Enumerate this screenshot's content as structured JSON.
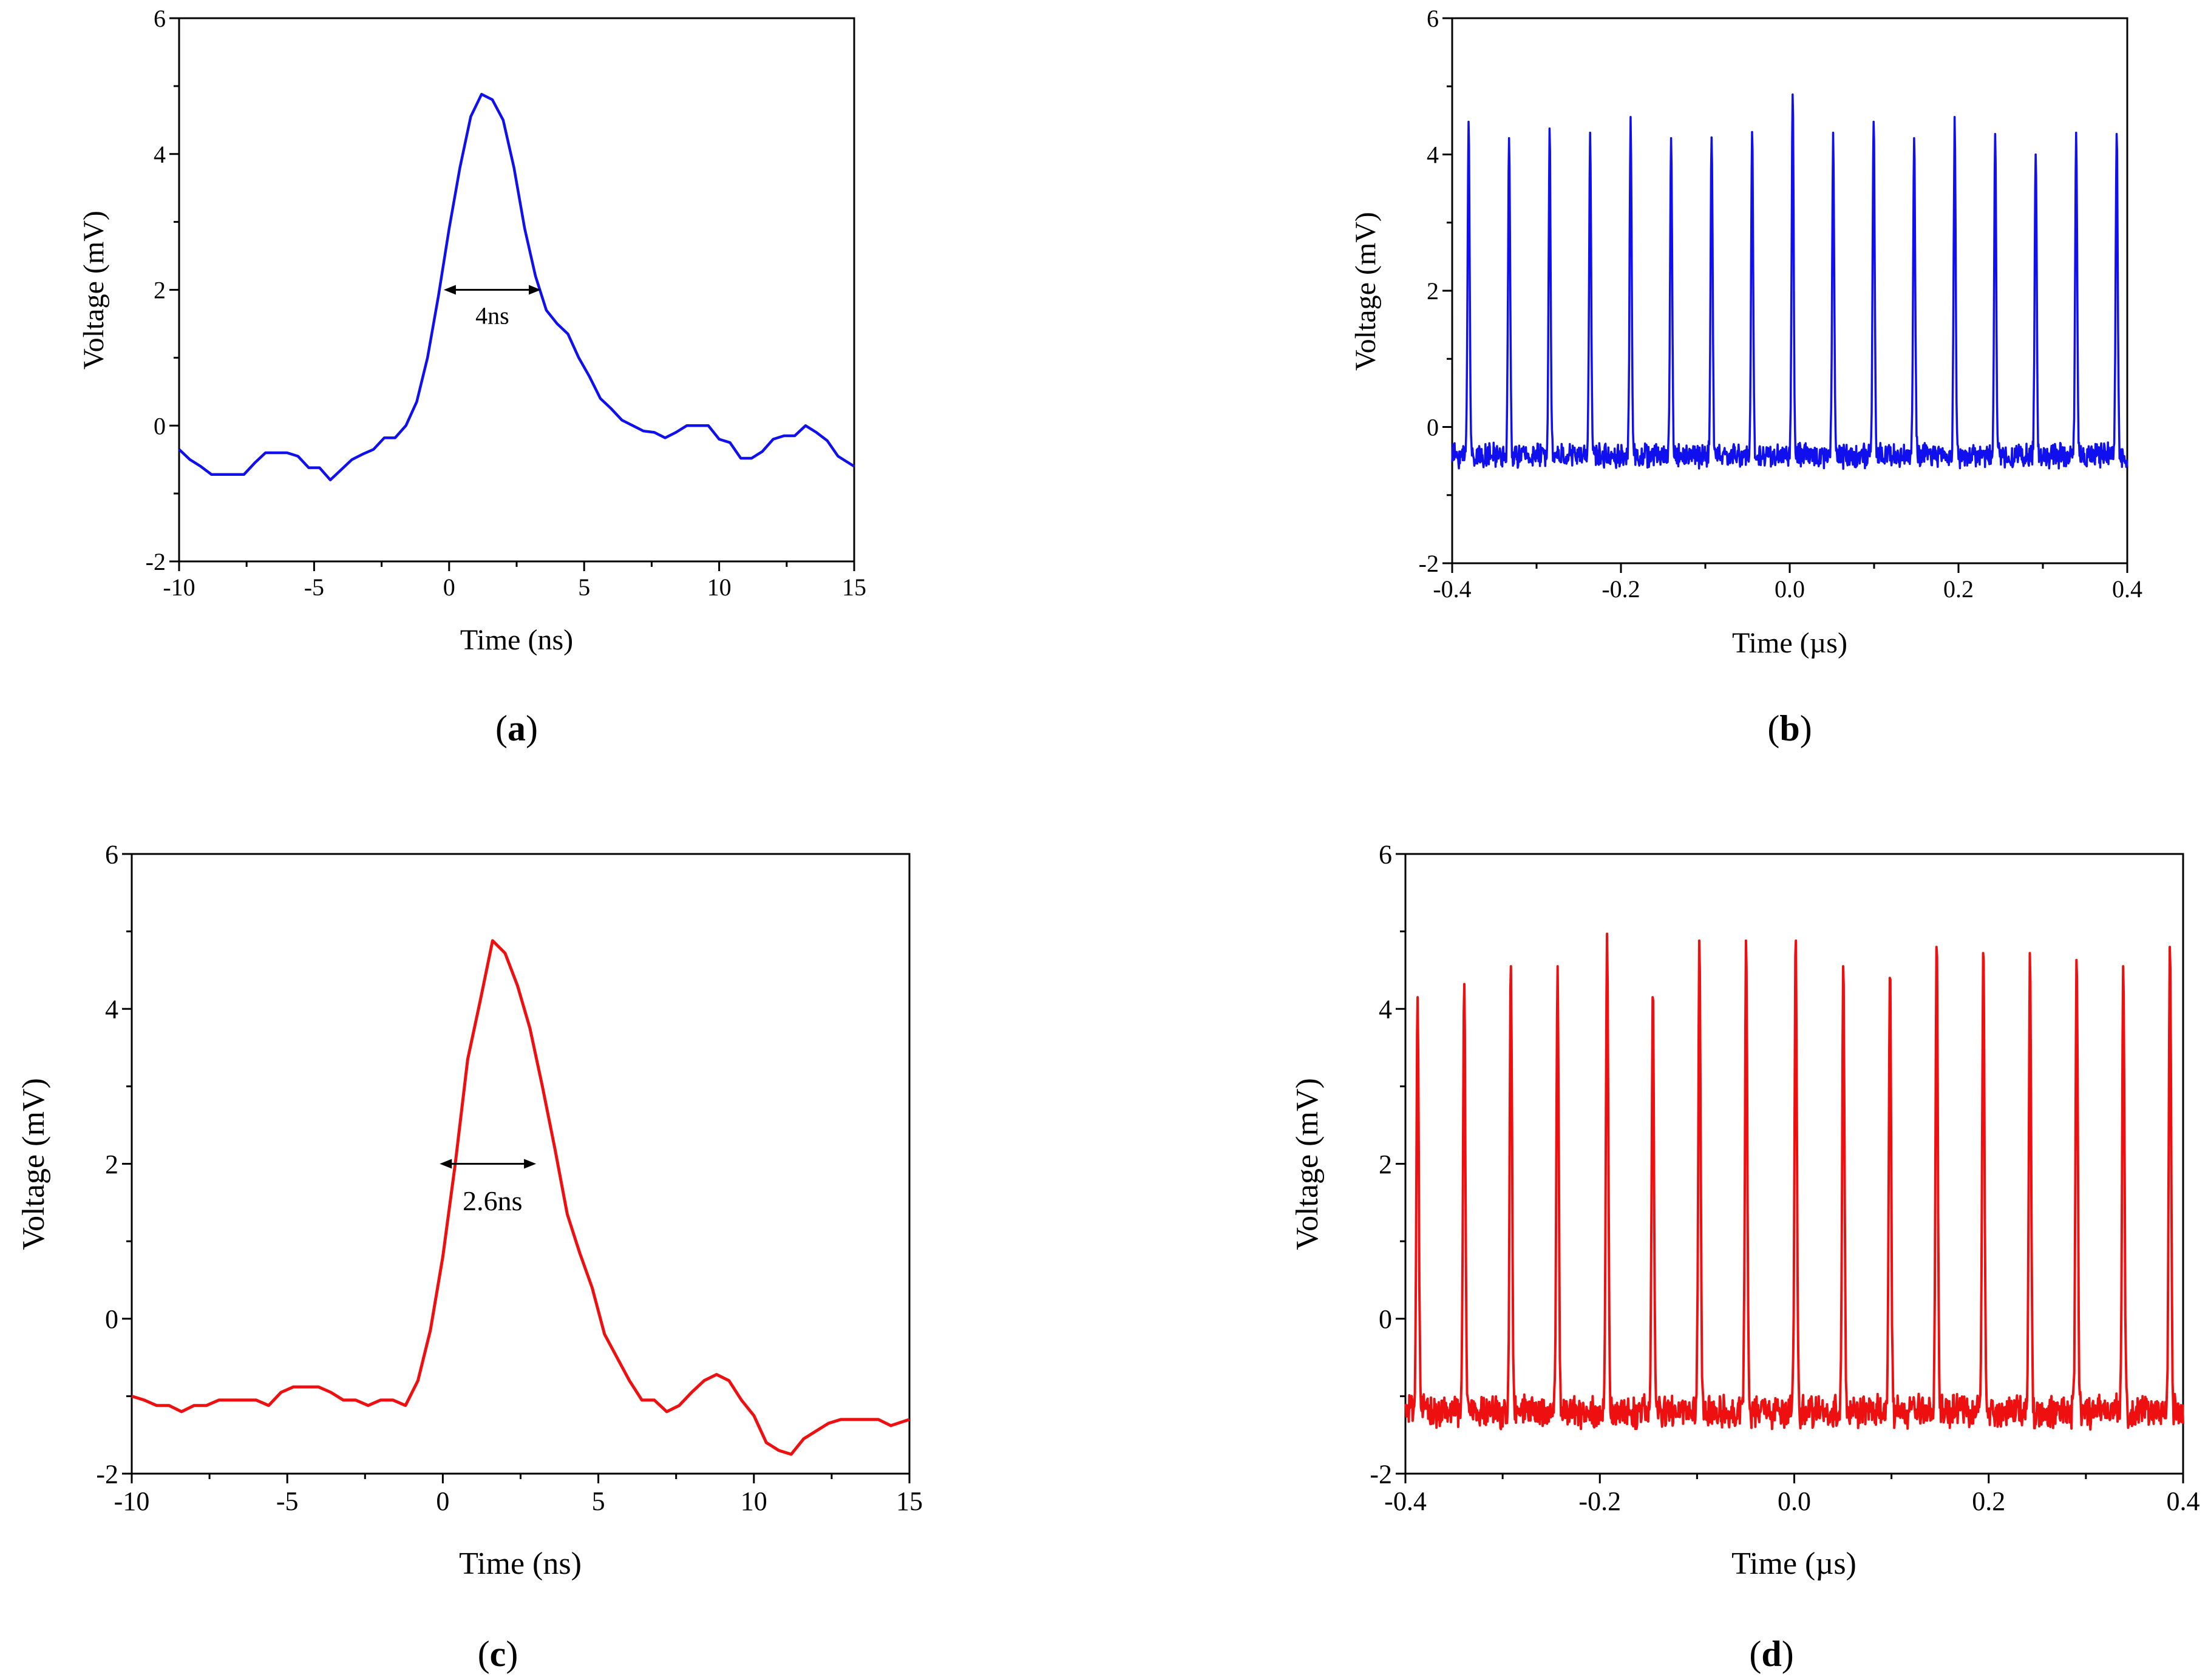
{
  "colors": {
    "blue": "#1010ee",
    "red": "#ee1010"
  },
  "chart_data": [
    {
      "type": "line",
      "panel": "(a)",
      "caption_letter": "a",
      "xlabel": "Time (ns)",
      "ylabel": "Voltage (mV)",
      "xlim": [
        -10,
        15
      ],
      "ylim": [
        -2,
        6
      ],
      "xticks": [
        -10,
        -5,
        0,
        5,
        10,
        15
      ],
      "yticks": [
        -2,
        0,
        2,
        4,
        6
      ],
      "xtick_labels": [
        "-10",
        "-5",
        "0",
        "5",
        "10",
        "15"
      ],
      "ytick_labels": [
        "-2",
        "0",
        "2",
        "4",
        "6"
      ],
      "grid": false,
      "color": "blue",
      "annotation": {
        "text": "4ns",
        "x1": -0.2,
        "x2": 3.4,
        "y": 2.0,
        "label_x": 1.6,
        "label_y": 1.5
      },
      "series": [
        {
          "name": "pulse",
          "x": [
            -10,
            -9.6,
            -9.2,
            -8.8,
            -8.4,
            -8,
            -7.6,
            -7.2,
            -6.8,
            -6.4,
            -6.0,
            -5.6,
            -5.2,
            -4.8,
            -4.4,
            -4.0,
            -3.6,
            -3.2,
            -2.8,
            -2.4,
            -2.0,
            -1.6,
            -1.2,
            -0.8,
            -0.4,
            0.0,
            0.4,
            0.8,
            1.2,
            1.6,
            2.0,
            2.4,
            2.8,
            3.2,
            3.6,
            4.0,
            4.4,
            4.8,
            5.2,
            5.6,
            6.0,
            6.4,
            6.8,
            7.2,
            7.6,
            8.0,
            8.4,
            8.8,
            9.2,
            9.6,
            10.0,
            10.4,
            10.8,
            11.2,
            11.6,
            12.0,
            12.4,
            12.8,
            13.2,
            13.6,
            14.0,
            14.4,
            15.0
          ],
          "values": [
            -0.35,
            -0.5,
            -0.6,
            -0.72,
            -0.72,
            -0.72,
            -0.72,
            -0.55,
            -0.4,
            -0.4,
            -0.4,
            -0.45,
            -0.62,
            -0.62,
            -0.8,
            -0.65,
            -0.5,
            -0.42,
            -0.35,
            -0.18,
            -0.18,
            0.0,
            0.35,
            1.0,
            1.9,
            2.9,
            3.8,
            4.55,
            4.88,
            4.8,
            4.5,
            3.8,
            2.9,
            2.2,
            1.7,
            1.5,
            1.35,
            1.0,
            0.72,
            0.4,
            0.25,
            0.08,
            0.0,
            -0.08,
            -0.1,
            -0.18,
            -0.1,
            0.0,
            0.0,
            0.0,
            -0.2,
            -0.25,
            -0.48,
            -0.48,
            -0.38,
            -0.2,
            -0.15,
            -0.15,
            0.0,
            -0.1,
            -0.22,
            -0.45,
            -0.6
          ]
        }
      ]
    },
    {
      "type": "line",
      "panel": "(b)",
      "caption_letter": "b",
      "xlabel": "Time (µs)",
      "ylabel": "Voltage (mV)",
      "xlim": [
        -0.4,
        0.4
      ],
      "ylim": [
        -2,
        6
      ],
      "xticks": [
        -0.4,
        -0.2,
        0.0,
        0.2,
        0.4
      ],
      "yticks": [
        -2,
        0,
        2,
        4,
        6
      ],
      "xtick_labels": [
        "-0.4",
        "-0.2",
        "0.0",
        "0.2",
        "0.4"
      ],
      "ytick_labels": [
        "-2",
        "0",
        "2",
        "4",
        "6"
      ],
      "grid": false,
      "color": "blue",
      "baseline": -0.42,
      "noise": 0.25,
      "pulse_width": 0.0012,
      "pulses": [
        {
          "t": -0.3805,
          "peak": 4.48
        },
        {
          "t": -0.3325,
          "peak": 4.24
        },
        {
          "t": -0.2845,
          "peak": 4.38
        },
        {
          "t": -0.2365,
          "peak": 4.32
        },
        {
          "t": -0.1885,
          "peak": 4.55
        },
        {
          "t": -0.1405,
          "peak": 4.24
        },
        {
          "t": -0.0925,
          "peak": 4.25
        },
        {
          "t": -0.0445,
          "peak": 4.33
        },
        {
          "t": 0.0035,
          "peak": 4.88
        },
        {
          "t": 0.0515,
          "peak": 4.32
        },
        {
          "t": 0.0995,
          "peak": 4.48
        },
        {
          "t": 0.1475,
          "peak": 4.24
        },
        {
          "t": 0.1955,
          "peak": 4.55
        },
        {
          "t": 0.2435,
          "peak": 4.3
        },
        {
          "t": 0.2915,
          "peak": 4.0
        },
        {
          "t": 0.3395,
          "peak": 4.32
        },
        {
          "t": 0.3875,
          "peak": 4.3
        }
      ]
    },
    {
      "type": "line",
      "panel": "(c)",
      "caption_letter": "c",
      "xlabel": "Time (ns)",
      "ylabel": "Voltage (mV)",
      "xlim": [
        -10,
        15
      ],
      "ylim": [
        -2,
        6
      ],
      "xticks": [
        -10,
        -5,
        0,
        5,
        10,
        15
      ],
      "yticks": [
        -2,
        0,
        2,
        4,
        6
      ],
      "xtick_labels": [
        "-10",
        "-5",
        "0",
        "5",
        "10",
        "15"
      ],
      "ytick_labels": [
        "-2",
        "0",
        "2",
        "4",
        "6"
      ],
      "grid": false,
      "color": "red",
      "annotation": {
        "text": "2.6ns",
        "x1": -0.1,
        "x2": 3.0,
        "y": 2.0,
        "label_x": 1.6,
        "label_y": 1.4
      },
      "series": [
        {
          "name": "pulse",
          "x": [
            -10,
            -9.6,
            -9.2,
            -8.8,
            -8.4,
            -8.0,
            -7.6,
            -7.2,
            -6.8,
            -6.4,
            -6.0,
            -5.6,
            -5.2,
            -4.8,
            -4.4,
            -4.0,
            -3.6,
            -3.2,
            -2.8,
            -2.4,
            -2.0,
            -1.6,
            -1.2,
            -0.8,
            -0.4,
            0.0,
            0.4,
            0.8,
            1.2,
            1.6,
            2.0,
            2.4,
            2.8,
            3.2,
            3.6,
            4.0,
            4.4,
            4.8,
            5.2,
            5.6,
            6.0,
            6.4,
            6.8,
            7.2,
            7.6,
            8.0,
            8.4,
            8.8,
            9.2,
            9.6,
            10.0,
            10.4,
            10.8,
            11.2,
            11.6,
            12.0,
            12.4,
            12.8,
            13.2,
            13.6,
            14.0,
            14.4,
            15.0
          ],
          "values": [
            -1.0,
            -1.05,
            -1.12,
            -1.12,
            -1.2,
            -1.12,
            -1.12,
            -1.05,
            -1.05,
            -1.05,
            -1.05,
            -1.12,
            -0.95,
            -0.88,
            -0.88,
            -0.88,
            -0.95,
            -1.05,
            -1.05,
            -1.12,
            -1.05,
            -1.05,
            -1.12,
            -0.8,
            -0.15,
            0.8,
            2.0,
            3.35,
            4.1,
            4.88,
            4.72,
            4.3,
            3.75,
            3.0,
            2.2,
            1.35,
            0.85,
            0.4,
            -0.2,
            -0.5,
            -0.8,
            -1.05,
            -1.05,
            -1.2,
            -1.12,
            -0.95,
            -0.8,
            -0.72,
            -0.8,
            -1.05,
            -1.25,
            -1.6,
            -1.7,
            -1.75,
            -1.55,
            -1.45,
            -1.35,
            -1.3,
            -1.3,
            -1.3,
            -1.3,
            -1.38,
            -1.3
          ]
        }
      ]
    },
    {
      "type": "line",
      "panel": "(d)",
      "caption_letter": "d",
      "xlabel": "Time (µs)",
      "ylabel": "Voltage (mV)",
      "xlim": [
        -0.4,
        0.4
      ],
      "ylim": [
        -2,
        6
      ],
      "xticks": [
        -0.4,
        -0.2,
        0.0,
        0.2,
        0.4
      ],
      "yticks": [
        -2,
        0,
        2,
        4,
        6
      ],
      "xtick_labels": [
        "-0.4",
        "-0.2",
        "0.0",
        "0.2",
        "0.4"
      ],
      "ytick_labels": [
        "-2",
        "0",
        "2",
        "4",
        "6"
      ],
      "grid": false,
      "color": "red",
      "baseline": -1.2,
      "noise": 0.3,
      "pulse_width": 0.0012,
      "pulses": [
        {
          "t": -0.3875,
          "peak": 4.15
        },
        {
          "t": -0.3395,
          "peak": 4.32
        },
        {
          "t": -0.2915,
          "peak": 4.55
        },
        {
          "t": -0.2435,
          "peak": 4.55
        },
        {
          "t": -0.1925,
          "peak": 4.97
        },
        {
          "t": -0.1455,
          "peak": 4.15
        },
        {
          "t": -0.0975,
          "peak": 4.88
        },
        {
          "t": -0.0495,
          "peak": 4.88
        },
        {
          "t": 0.0015,
          "peak": 4.88
        },
        {
          "t": 0.0505,
          "peak": 4.55
        },
        {
          "t": 0.0985,
          "peak": 4.4
        },
        {
          "t": 0.1465,
          "peak": 4.8
        },
        {
          "t": 0.1945,
          "peak": 4.72
        },
        {
          "t": 0.2425,
          "peak": 4.72
        },
        {
          "t": 0.2905,
          "peak": 4.63
        },
        {
          "t": 0.3385,
          "peak": 4.55
        },
        {
          "t": 0.3865,
          "peak": 4.8
        }
      ]
    }
  ]
}
